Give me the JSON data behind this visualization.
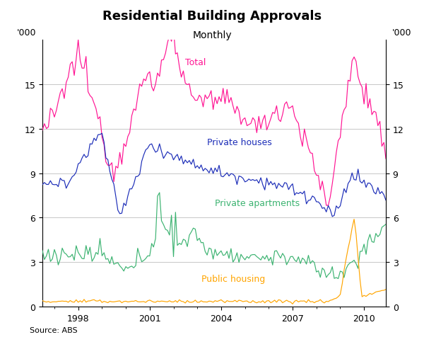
{
  "title": "Residential Building Approvals",
  "subtitle": "Monthly",
  "ylabel_left": "'000",
  "ylabel_right": "'000",
  "source": "Source: ABS",
  "ylim": [
    0,
    18
  ],
  "yticks": [
    0,
    3,
    6,
    9,
    12,
    15
  ],
  "colors": {
    "total": "#FF1493",
    "private_houses": "#1C2DB8",
    "private_apartments": "#3CB371",
    "public_housing": "#FFA500"
  },
  "line_labels": {
    "total": "Total",
    "private_houses": "Private houses",
    "private_apartments": "Private apartments",
    "public_housing": "Public housing"
  },
  "background_color": "#ffffff",
  "grid_color": "#b0b0b0"
}
